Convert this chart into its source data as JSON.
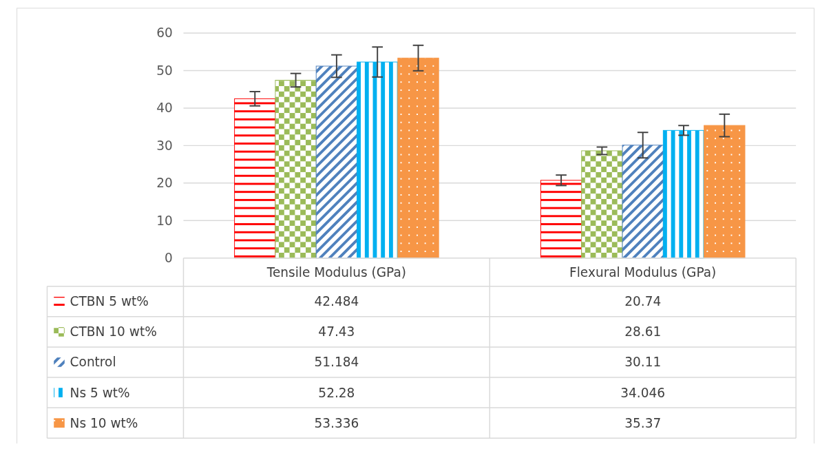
{
  "chart_data": {
    "type": "bar",
    "categories": [
      "Tensile Modulus (GPa)",
      "Flexural Modulus (GPa)"
    ],
    "series": [
      {
        "name": "CTBN 5 wt%",
        "color": "#ff0000",
        "values": [
          42.484,
          20.74
        ],
        "errors": [
          1.9,
          1.4
        ]
      },
      {
        "name": "CTBN 10 wt%",
        "color": "#9bbb59",
        "values": [
          47.43,
          28.61
        ],
        "errors": [
          1.8,
          1.0
        ]
      },
      {
        "name": "Control",
        "color": "#4f81bd",
        "values": [
          51.184,
          30.11
        ],
        "errors": [
          3.0,
          3.4
        ]
      },
      {
        "name": "Ns 5 wt%",
        "color": "#00b0f0",
        "values": [
          52.28,
          34.046
        ],
        "errors": [
          4.0,
          1.3
        ]
      },
      {
        "name": "Ns 10 wt%",
        "color": "#f79646",
        "values": [
          53.336,
          35.37
        ],
        "errors": [
          3.4,
          3.0
        ]
      }
    ],
    "data_labels": true,
    "ylim": [
      0,
      60
    ],
    "yticks": [
      0,
      10,
      20,
      30,
      40,
      50,
      60
    ],
    "grid": "y",
    "legend": "bottom"
  }
}
